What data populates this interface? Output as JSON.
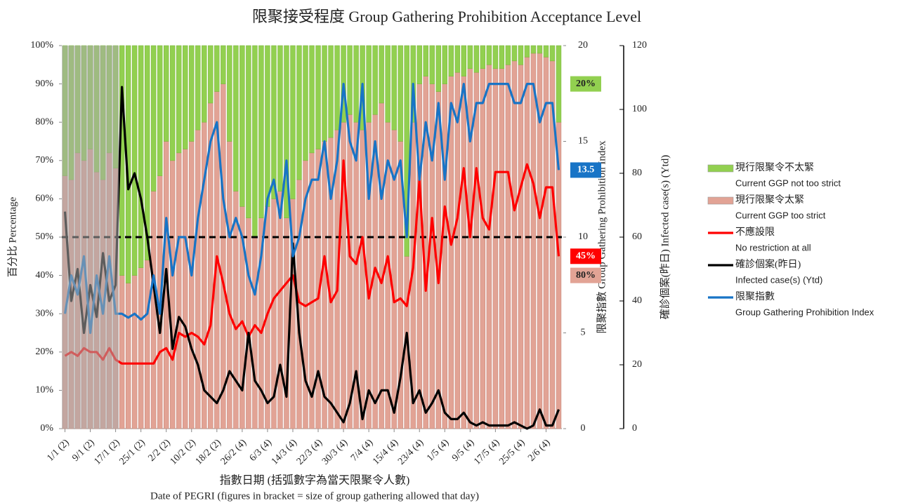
{
  "chart_data": {
    "type": "combo",
    "title": "限聚接受程度 Group Gathering Prohibition Acceptance Level",
    "x_label": "指數日期 (括弧數字為當天限聚令人數)",
    "x_label_en": "Date of PEGRI (figures in bracket = size of group gathering allowed that day)",
    "y_label": "百分比 Percentage",
    "y2_label": "限聚指數 Group Gathering Prohibition Index",
    "y3_label": "確診個案(昨日) Infected case(s) (Ytd)",
    "categories": [
      "1/1 (2)",
      null,
      null,
      null,
      "9/1 (2)",
      null,
      null,
      null,
      "17/1 (2)",
      null,
      null,
      null,
      "25/1 (2)",
      null,
      null,
      null,
      "2/2 (2)",
      null,
      null,
      null,
      "10/2 (2)",
      null,
      null,
      null,
      "18/2 (2)",
      null,
      null,
      null,
      "26/2 (4)",
      null,
      null,
      null,
      "6/3 (4)",
      null,
      null,
      null,
      "14/3 (4)",
      null,
      null,
      null,
      "22/3 (4)",
      null,
      null,
      null,
      "30/3 (4)",
      null,
      null,
      null,
      "7/4 (4)",
      null,
      null,
      null,
      "15/4 (4)",
      null,
      null,
      null,
      "23/4 (4)",
      null,
      null,
      null,
      "1/5 (4)",
      null,
      null,
      null,
      "9/5 (4)",
      null,
      null,
      null,
      "17/5 (4)",
      null,
      null,
      null,
      "25/5 (4)",
      null,
      null,
      null,
      "2/6 (4)",
      null,
      null
    ],
    "ylim": [
      0,
      100
    ],
    "yticks": [
      {
        "value": 0,
        "label": "0%"
      },
      {
        "value": 10,
        "label": "10%"
      },
      {
        "value": 20,
        "label": "20%"
      },
      {
        "value": 30,
        "label": "30%"
      },
      {
        "value": 40,
        "label": "40%"
      },
      {
        "value": 50,
        "label": "50%"
      },
      {
        "value": 60,
        "label": "60%"
      },
      {
        "value": 70,
        "label": "70%"
      },
      {
        "value": 80,
        "label": "80%"
      },
      {
        "value": 90,
        "label": "90%"
      },
      {
        "value": 100,
        "label": "100%"
      }
    ],
    "y2lim": [
      0,
      20
    ],
    "y2ticks": [
      0,
      5,
      10,
      15,
      20
    ],
    "y3lim": [
      0,
      120
    ],
    "y3ticks": [
      0,
      20,
      40,
      60,
      80,
      100,
      120
    ],
    "hline": 50,
    "series": [
      {
        "name": "現行限聚令不太緊",
        "name_en": "Current GGP not too strict",
        "kind": "bar",
        "color": "#92d050",
        "end_label": "20%",
        "values": [
          34,
          35,
          28,
          30,
          27,
          33,
          35,
          28,
          32,
          60,
          62,
          60,
          58,
          56,
          38,
          34,
          25,
          30,
          28,
          27,
          25,
          22,
          20,
          15,
          12,
          10,
          25,
          38,
          42,
          45,
          50,
          45,
          42,
          40,
          38,
          45,
          40,
          35,
          30,
          28,
          27,
          25,
          24,
          22,
          20,
          18,
          20,
          22,
          20,
          18,
          15,
          20,
          22,
          25,
          55,
          20,
          10,
          8,
          10,
          12,
          10,
          8,
          7,
          8,
          6,
          7,
          6,
          5,
          6,
          6,
          5,
          4,
          5,
          3,
          2,
          2,
          3,
          4,
          20
        ]
      },
      {
        "name": "現行限聚令太緊",
        "name_en": "Current GGP too strict",
        "kind": "bar",
        "color": "#e2a395",
        "end_label": "80%",
        "values": [
          66,
          65,
          72,
          70,
          73,
          67,
          65,
          72,
          68,
          40,
          38,
          40,
          42,
          44,
          62,
          66,
          75,
          70,
          72,
          73,
          75,
          78,
          80,
          85,
          88,
          90,
          75,
          62,
          58,
          55,
          50,
          55,
          58,
          60,
          62,
          55,
          60,
          65,
          70,
          72,
          73,
          75,
          76,
          78,
          80,
          82,
          80,
          78,
          80,
          82,
          85,
          80,
          78,
          75,
          45,
          80,
          90,
          92,
          90,
          88,
          90,
          92,
          93,
          92,
          94,
          93,
          94,
          95,
          94,
          94,
          95,
          96,
          95,
          97,
          98,
          98,
          97,
          96,
          80
        ]
      },
      {
        "name": "不應設限",
        "name_en": "No restriction at all",
        "kind": "line",
        "color": "#ff0000",
        "end_label": "45%",
        "values": [
          19,
          20,
          19,
          21,
          20,
          20,
          18,
          21,
          18,
          17,
          17,
          17,
          17,
          17,
          17,
          20,
          21,
          18,
          25,
          24,
          25,
          24,
          22,
          27,
          45,
          38,
          30,
          26,
          28,
          24,
          27,
          25,
          30,
          34,
          36,
          38,
          40,
          33,
          32,
          33,
          34,
          45,
          33,
          36,
          70,
          45,
          43,
          50,
          34,
          42,
          38,
          45,
          33,
          34,
          32,
          42,
          65,
          36,
          55,
          38,
          58,
          48,
          55,
          68,
          50,
          68,
          55,
          52,
          67,
          67,
          67,
          57,
          63,
          69,
          64,
          55,
          63,
          63,
          45
        ]
      },
      {
        "name": "確診個案(昨日)",
        "name_en": "Infected case(s) (Ytd)",
        "kind": "line",
        "axis": "y3",
        "color": "#000000",
        "values": [
          68,
          40,
          50,
          30,
          45,
          35,
          55,
          40,
          45,
          107,
          75,
          80,
          72,
          60,
          45,
          30,
          50,
          25,
          35,
          32,
          25,
          20,
          12,
          10,
          8,
          12,
          18,
          15,
          12,
          30,
          15,
          12,
          8,
          10,
          20,
          10,
          58,
          30,
          15,
          10,
          18,
          10,
          8,
          5,
          2,
          8,
          18,
          3,
          12,
          8,
          12,
          12,
          5,
          16,
          30,
          8,
          12,
          5,
          8,
          12,
          5,
          3,
          3,
          5,
          2,
          1,
          2,
          1,
          1,
          1,
          1,
          2,
          1,
          0,
          1,
          6,
          1,
          1,
          6
        ]
      },
      {
        "name": "限聚指數",
        "name_en": "Group Gathering Prohibition Index",
        "kind": "line",
        "axis": "y2",
        "color": "#1874c6",
        "end_label": "13.5",
        "values": [
          6,
          8,
          7,
          9,
          5,
          8,
          6,
          9,
          6,
          6,
          5.8,
          6,
          5.7,
          6,
          8,
          6,
          11,
          8,
          10,
          10,
          8,
          11,
          13,
          15,
          16,
          12,
          10,
          11,
          10,
          8,
          7,
          9,
          12,
          13,
          11,
          14,
          9,
          10,
          12,
          13,
          13,
          15,
          12,
          14,
          18,
          15,
          14,
          18,
          12,
          15,
          12,
          14,
          13,
          14,
          10,
          18,
          13,
          16,
          14,
          17,
          13,
          17,
          16,
          18,
          15,
          17,
          17,
          18,
          18,
          18,
          18,
          17,
          17,
          18,
          18,
          16,
          17,
          17,
          13.5
        ]
      }
    ]
  }
}
